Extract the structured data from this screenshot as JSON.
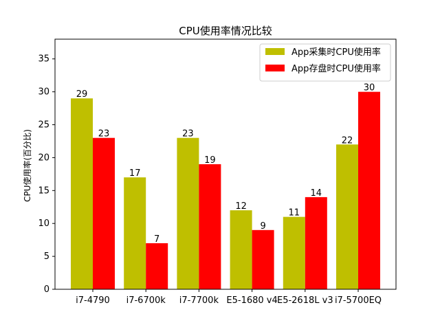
{
  "chart_data": {
    "type": "bar",
    "title": "CPU使用率情况比较",
    "xlabel": "",
    "ylabel": "CPU使用率(百分比)",
    "ylim": [
      0,
      38
    ],
    "yticks": [
      0,
      5,
      10,
      15,
      20,
      25,
      30,
      35
    ],
    "grid": false,
    "legend_position": "top-right",
    "categories": [
      "i7-4790",
      "i7-6700k",
      "i7-7700k",
      "E5-1680 v4",
      "E5-2618L v3",
      "i7-5700EQ"
    ],
    "series": [
      {
        "name": "App采集时CPU使用率",
        "color": "#bfbf00",
        "values": [
          29,
          17,
          23,
          12,
          11,
          22
        ]
      },
      {
        "name": "App存盘时CPU使用率",
        "color": "#ff0000",
        "values": [
          23,
          7,
          19,
          9,
          14,
          30
        ]
      }
    ]
  }
}
